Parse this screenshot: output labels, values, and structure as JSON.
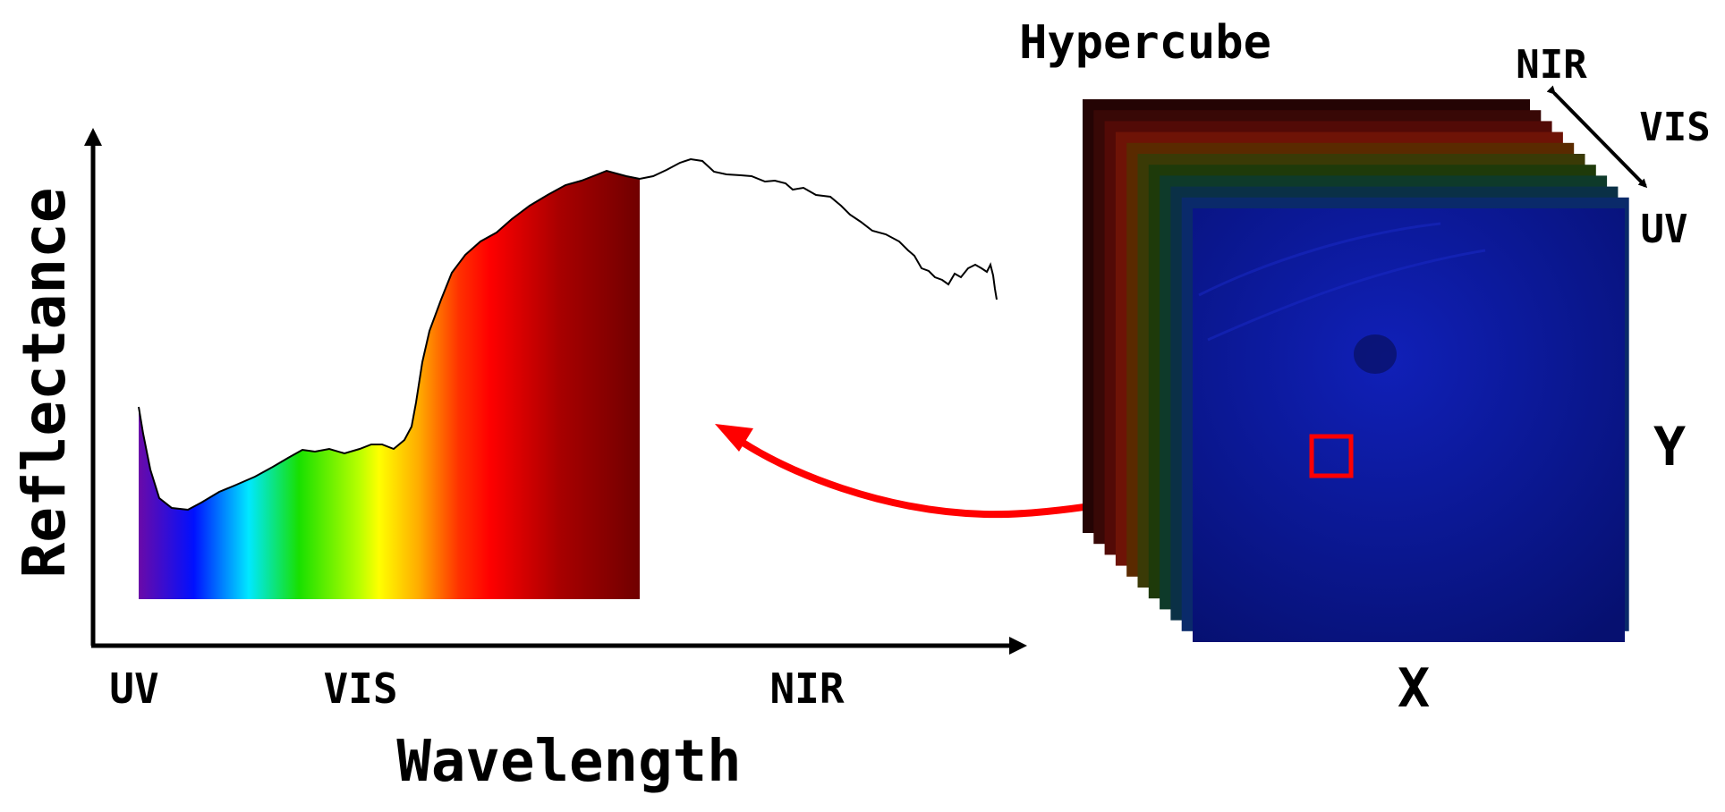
{
  "spectrum": {
    "ylabel": "Reflectance",
    "xlabel": "Wavelength",
    "x_ticks": [
      "UV",
      "VIS",
      "NIR"
    ]
  },
  "cube": {
    "title": "Hypercube",
    "band_labels": [
      "NIR",
      "VIS",
      "UV"
    ],
    "x_label": "X",
    "y_label": "Y"
  },
  "colors": {
    "arrow": "#ff0000",
    "pixel_box": "#ff0000",
    "front_band": "#0a1a9c",
    "axes": "#000000"
  }
}
